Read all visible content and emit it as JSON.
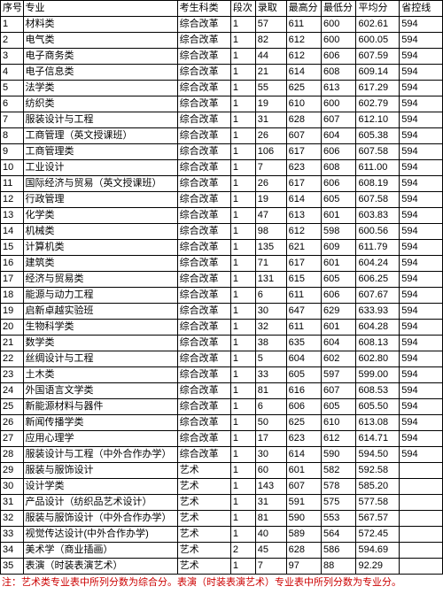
{
  "columns": [
    "序号",
    "专业",
    "考生科类",
    "段次",
    "录取",
    "最高分",
    "最低分",
    "平均分",
    "省控线"
  ],
  "footnote": "注：艺术类专业表中所列分数为综合分。表演（时装表演艺术）专业表中所列分数为专业分。",
  "rows": [
    [
      "1",
      "材料类",
      "综合改革",
      "1",
      "57",
      "611",
      "600",
      "602.61",
      "594"
    ],
    [
      "2",
      "电气类",
      "综合改革",
      "1",
      "82",
      "612",
      "600",
      "600.05",
      "594"
    ],
    [
      "3",
      "电子商务类",
      "综合改革",
      "1",
      "44",
      "612",
      "606",
      "607.59",
      "594"
    ],
    [
      "4",
      "电子信息类",
      "综合改革",
      "1",
      "21",
      "614",
      "608",
      "609.14",
      "594"
    ],
    [
      "5",
      "法学类",
      "综合改革",
      "1",
      "55",
      "625",
      "613",
      "617.29",
      "594"
    ],
    [
      "6",
      "纺织类",
      "综合改革",
      "1",
      "19",
      "610",
      "600",
      "602.79",
      "594"
    ],
    [
      "7",
      "服装设计与工程",
      "综合改革",
      "1",
      "31",
      "628",
      "607",
      "612.10",
      "594"
    ],
    [
      "8",
      "工商管理（英文授课班）",
      "综合改革",
      "1",
      "26",
      "607",
      "604",
      "605.38",
      "594"
    ],
    [
      "9",
      "工商管理类",
      "综合改革",
      "1",
      "106",
      "617",
      "606",
      "607.58",
      "594"
    ],
    [
      "10",
      "工业设计",
      "综合改革",
      "1",
      "7",
      "623",
      "608",
      "611.00",
      "594"
    ],
    [
      "11",
      "国际经济与贸易（英文授课班）",
      "综合改革",
      "1",
      "26",
      "617",
      "606",
      "608.19",
      "594"
    ],
    [
      "12",
      "行政管理",
      "综合改革",
      "1",
      "19",
      "614",
      "605",
      "607.58",
      "594"
    ],
    [
      "13",
      "化学类",
      "综合改革",
      "1",
      "47",
      "613",
      "601",
      "603.83",
      "594"
    ],
    [
      "14",
      "机械类",
      "综合改革",
      "1",
      "98",
      "612",
      "598",
      "600.56",
      "594"
    ],
    [
      "15",
      "计算机类",
      "综合改革",
      "1",
      "135",
      "621",
      "609",
      "611.79",
      "594"
    ],
    [
      "16",
      "建筑类",
      "综合改革",
      "1",
      "71",
      "617",
      "601",
      "604.24",
      "594"
    ],
    [
      "17",
      "经济与贸易类",
      "综合改革",
      "1",
      "131",
      "615",
      "605",
      "606.25",
      "594"
    ],
    [
      "18",
      "能源与动力工程",
      "综合改革",
      "1",
      "6",
      "611",
      "606",
      "607.67",
      "594"
    ],
    [
      "19",
      "启新卓越实验班",
      "综合改革",
      "1",
      "30",
      "647",
      "629",
      "633.93",
      "594"
    ],
    [
      "20",
      "生物科学类",
      "综合改革",
      "1",
      "32",
      "611",
      "601",
      "604.28",
      "594"
    ],
    [
      "21",
      "数学类",
      "综合改革",
      "1",
      "38",
      "635",
      "604",
      "608.13",
      "594"
    ],
    [
      "22",
      "丝绸设计与工程",
      "综合改革",
      "1",
      "5",
      "604",
      "602",
      "602.80",
      "594"
    ],
    [
      "23",
      "土木类",
      "综合改革",
      "1",
      "33",
      "605",
      "597",
      "599.00",
      "594"
    ],
    [
      "24",
      "外国语言文学类",
      "综合改革",
      "1",
      "81",
      "616",
      "607",
      "608.53",
      "594"
    ],
    [
      "25",
      "新能源材料与器件",
      "综合改革",
      "1",
      "6",
      "606",
      "605",
      "605.50",
      "594"
    ],
    [
      "26",
      "新闻传播学类",
      "综合改革",
      "1",
      "50",
      "625",
      "610",
      "613.08",
      "594"
    ],
    [
      "27",
      "应用心理学",
      "综合改革",
      "1",
      "17",
      "623",
      "612",
      "614.71",
      "594"
    ],
    [
      "28",
      "服装设计与工程（中外合作办学）",
      "综合改革",
      "1",
      "30",
      "614",
      "590",
      "594.50",
      "594"
    ],
    [
      "29",
      "服装与服饰设计",
      "艺术",
      "1",
      "60",
      "601",
      "582",
      "592.58",
      ""
    ],
    [
      "30",
      "设计学类",
      "艺术",
      "1",
      "143",
      "607",
      "578",
      "585.20",
      ""
    ],
    [
      "31",
      "产品设计（纺织品艺术设计）",
      "艺术",
      "1",
      "31",
      "591",
      "575",
      "577.58",
      ""
    ],
    [
      "32",
      "服装与服饰设计（中外合作办学）",
      "艺术",
      "1",
      "81",
      "590",
      "553",
      "567.57",
      ""
    ],
    [
      "33",
      "视觉传达设计(中外合作办学)",
      "艺术",
      "1",
      "40",
      "589",
      "564",
      "572.45",
      ""
    ],
    [
      "34",
      "美术学（商业插画）",
      "艺术",
      "2",
      "45",
      "628",
      "586",
      "594.69",
      ""
    ],
    [
      "35",
      "表演（时装表演艺术）",
      "艺术",
      "1",
      "7",
      "97",
      "88",
      "92.29",
      ""
    ]
  ]
}
